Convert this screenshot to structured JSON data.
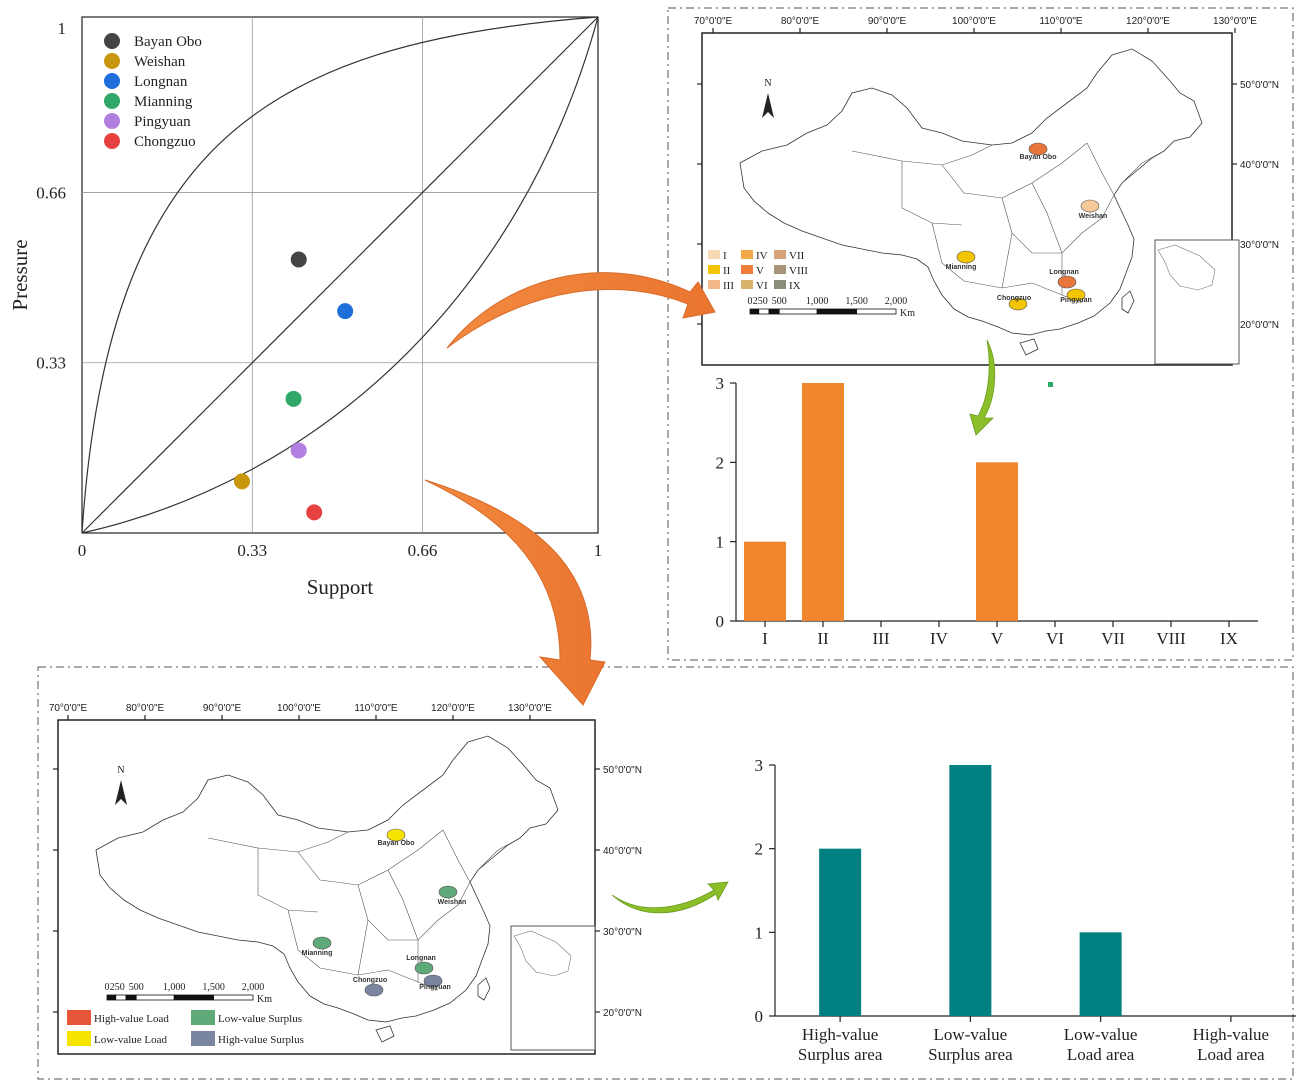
{
  "chart_data": [
    {
      "type": "scatter",
      "xlabel": "Support",
      "ylabel": "Pressure",
      "xlim": [
        0,
        1
      ],
      "ylim": [
        0,
        1
      ],
      "xticks": [
        "0",
        "0.33",
        "0.66",
        "1"
      ],
      "yticks": [
        "0.33",
        "0.66",
        "1"
      ],
      "grid": true,
      "legend_position": "top-left",
      "series": [
        {
          "name": "Bayan Obo",
          "color": "#444444",
          "x": 0.42,
          "y": 0.53
        },
        {
          "name": "Weishan",
          "color": "#c8960c",
          "x": 0.31,
          "y": 0.1
        },
        {
          "name": "Longnan",
          "color": "#1e6fd9",
          "x": 0.51,
          "y": 0.43
        },
        {
          "name": "Mianning",
          "color": "#2fa86a",
          "x": 0.41,
          "y": 0.26
        },
        {
          "name": "Pingyuan",
          "color": "#b07fe0",
          "x": 0.42,
          "y": 0.16
        },
        {
          "name": "Chongzuo",
          "color": "#e84141",
          "x": 0.45,
          "y": 0.04
        }
      ]
    },
    {
      "type": "bar",
      "categories": [
        "I",
        "II",
        "III",
        "IV",
        "V",
        "VI",
        "VII",
        "VIII",
        "IX"
      ],
      "values": [
        1,
        3,
        0,
        0,
        2,
        0,
        0,
        0,
        0
      ],
      "color": "#f0862d",
      "ylim": [
        0,
        3
      ],
      "yticks": [
        "0",
        "1",
        "2",
        "3"
      ]
    },
    {
      "type": "bar",
      "categories": [
        [
          "High-value",
          "Surplus area"
        ],
        [
          "Low-value",
          "Surplus area"
        ],
        [
          "Low-value",
          "Load area"
        ],
        [
          "High-value",
          "Load area"
        ]
      ],
      "values": [
        2,
        3,
        1,
        0
      ],
      "color": "#008080",
      "ylim": [
        0,
        3
      ],
      "yticks": [
        "0",
        "1",
        "2",
        "3"
      ]
    }
  ],
  "map_top": {
    "lon_labels": [
      "70°0'0\"E",
      "80°0'0\"E",
      "90°0'0\"E",
      "100°0'0\"E",
      "110°0'0\"E",
      "120°0'0\"E",
      "130°0'0\"E"
    ],
    "lat_labels": [
      "50°0'0\"N",
      "40°0'0\"N",
      "30°0'0\"N",
      "20°0'0\"N"
    ],
    "north": "N",
    "scale_numbers": [
      "0",
      "250",
      "500",
      "1,000",
      "1,500",
      "2,000"
    ],
    "scale_unit": "Km",
    "sites": [
      {
        "name": "Bayan Obo",
        "color": "#e8763a"
      },
      {
        "name": "Weishan",
        "color": "#f6c99b"
      },
      {
        "name": "Mianning",
        "color": "#f2c500"
      },
      {
        "name": "Longnan",
        "color": "#e8763a"
      },
      {
        "name": "Chongzuo",
        "color": "#f2c500"
      },
      {
        "name": "Pingyuan",
        "color": "#f2c500"
      }
    ],
    "legend": [
      {
        "label": "I",
        "color": "#f7d9b5"
      },
      {
        "label": "II",
        "color": "#f2c500"
      },
      {
        "label": "III",
        "color": "#f3b88a"
      },
      {
        "label": "IV",
        "color": "#f2a94a"
      },
      {
        "label": "V",
        "color": "#ef7e3b"
      },
      {
        "label": "VI",
        "color": "#d9b36b"
      },
      {
        "label": "VII",
        "color": "#d6a27a"
      },
      {
        "label": "VIII",
        "color": "#a89478"
      },
      {
        "label": "IX",
        "color": "#8c8c7a"
      }
    ]
  },
  "map_bottom": {
    "lon_labels": [
      "70°0'0\"E",
      "80°0'0\"E",
      "90°0'0\"E",
      "100°0'0\"E",
      "110°0'0\"E",
      "120°0'0\"E",
      "130°0'0\"E"
    ],
    "lat_labels": [
      "50°0'0\"N",
      "40°0'0\"N",
      "30°0'0\"N",
      "20°0'0\"N"
    ],
    "north": "N",
    "scale_numbers": [
      "0",
      "250",
      "500",
      "1,000",
      "1,500",
      "2,000"
    ],
    "scale_unit": "Km",
    "sites": [
      {
        "name": "Bayan Obo",
        "color": "#f5e400"
      },
      {
        "name": "Weishan",
        "color": "#5fa878"
      },
      {
        "name": "Mianning",
        "color": "#5fa878"
      },
      {
        "name": "Longnan",
        "color": "#5fa878"
      },
      {
        "name": "Chongzuo",
        "color": "#7a86a0"
      },
      {
        "name": "Pingyuan",
        "color": "#7a86a0"
      }
    ],
    "legend": [
      {
        "label": "High-value Load",
        "color": "#e8563a"
      },
      {
        "label": "Low-value Surplus",
        "color": "#5fa878"
      },
      {
        "label": "Low-value Load",
        "color": "#f5e400"
      },
      {
        "label": "High-value Surplus",
        "color": "#7a86a0"
      }
    ]
  }
}
